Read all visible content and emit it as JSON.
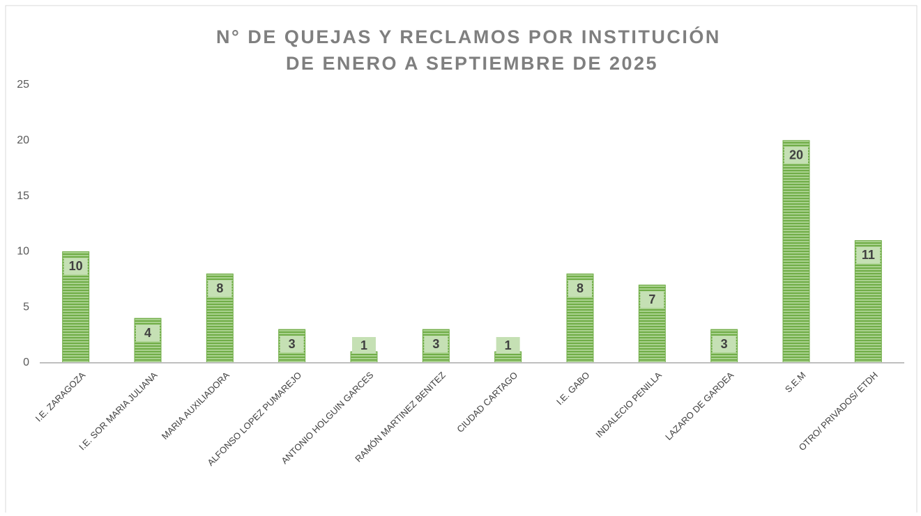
{
  "chart_data": {
    "type": "bar",
    "title": [
      "N° DE QUEJAS Y RECLAMOS POR INSTITUCIÓN",
      "DE ENERO A SEPTIEMBRE DE 2025"
    ],
    "categories": [
      "I.E. ZARAGOZA",
      "I.E. SOR MARIA JULIANA",
      "MARIA AUXILIADORA",
      "ALFONSO LOPEZ PUMAREJO",
      "ANTONIO HOLGUIN GARCES",
      "RAMÓN MARTINEZ BENITEZ",
      "CIUDAD CARTAGO",
      "I.E. GABO",
      "INDALECIO PENILLA",
      "LAZARO DE GARDEA",
      "S.E.M",
      "OTRO/ PRIVADOS/ ETDH"
    ],
    "values": [
      10,
      4,
      8,
      3,
      1,
      3,
      1,
      8,
      7,
      3,
      20,
      11
    ],
    "color": "#70ad47",
    "ylim": [
      0,
      25
    ],
    "yticks": [
      0,
      5,
      10,
      15,
      20,
      25
    ],
    "grid": false
  }
}
